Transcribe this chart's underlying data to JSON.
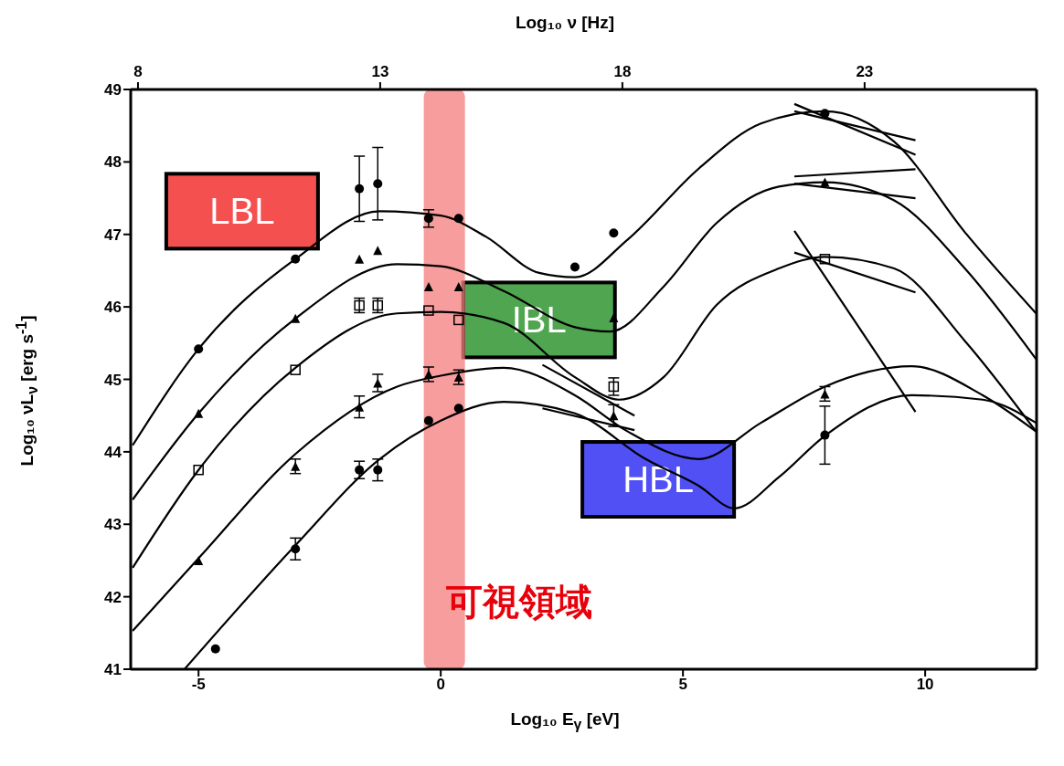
{
  "chart_data": {
    "type": "line",
    "xlabel": "Log₁₀ E$_{γ}$ [eV]",
    "ylabel": "Log₁₀ νL$_{ν}$ [erg s$^{-1}$]",
    "x2label": "Log₁₀ ν [Hz]",
    "xlim": [
      -6.4,
      12.3
    ],
    "xticks": [
      -5,
      0,
      5,
      10
    ],
    "x2lim": [
      7.85,
      26.55
    ],
    "x2ticks": [
      8,
      13,
      18,
      23
    ],
    "ylim": [
      41,
      49
    ],
    "yticks": [
      41,
      42,
      43,
      44,
      45,
      46,
      47,
      48,
      49
    ],
    "grid": false,
    "legend": false,
    "series": [
      {
        "color": "#000000",
        "marker": "none",
        "x": [
          -6.36,
          -5,
          -3,
          -1.26,
          0,
          0.93,
          2.03,
          2.77,
          3.86,
          5.33,
          6.61,
          7.93,
          9.36,
          10.82,
          12.29
        ],
        "values": [
          44.09,
          45.42,
          46.66,
          47.32,
          47.26,
          46.97,
          46.47,
          46.41,
          46.93,
          47.91,
          48.53,
          48.7,
          48.28,
          47.03,
          45.91
        ]
      },
      {
        "type": "line",
        "color": "#000000",
        "marker": "none",
        "x": [
          -6.36,
          -5,
          -3,
          -0.9,
          0,
          1.3,
          2.77,
          3.5,
          4.6,
          5.7,
          6.98,
          7.93,
          9.36,
          10.82,
          12.29
        ],
        "values": [
          43.34,
          44.53,
          45.84,
          46.59,
          46.56,
          46.22,
          45.72,
          45.66,
          46.28,
          47.16,
          47.66,
          47.72,
          47.47,
          46.53,
          45.28
        ]
      },
      {
        "type": "line",
        "color": "#000000",
        "marker": "none",
        "x": [
          -6.36,
          -5,
          -3,
          -0.9,
          0,
          1.3,
          2.77,
          3.68,
          4.6,
          5.7,
          6.98,
          7.93,
          9.36,
          10.82,
          12.29
        ],
        "values": [
          42.4,
          43.75,
          45.16,
          45.91,
          45.93,
          45.78,
          45.03,
          44.72,
          45.03,
          46.03,
          46.53,
          46.69,
          46.53,
          45.53,
          44.28
        ]
      },
      {
        "type": "line",
        "color": "#000000",
        "marker": "none",
        "x": [
          -6.36,
          -5,
          -3,
          -0.9,
          0,
          1.3,
          2.77,
          3.86,
          5.33,
          6.61,
          7.93,
          9.72,
          11.19,
          12.29
        ],
        "values": [
          41.53,
          42.53,
          43.97,
          44.9,
          45.05,
          45.16,
          44.78,
          44.28,
          43.9,
          44.4,
          44.9,
          45.18,
          44.78,
          44.28
        ]
      },
      {
        "type": "line",
        "color": "#000000",
        "marker": "none",
        "x": [
          -5.29,
          -3,
          -1.26,
          0,
          1.3,
          2.77,
          4.23,
          5.33,
          6.06,
          6.98,
          7.93,
          9.72,
          11.19,
          12.29
        ],
        "values": [
          41,
          42.71,
          43.9,
          44.43,
          44.69,
          44.53,
          43.9,
          43.53,
          43.22,
          43.65,
          44.22,
          44.78,
          44.72,
          44.4
        ]
      },
      {
        "type": "scatter",
        "color": "#000000",
        "marker": "circle",
        "x": [
          -5,
          -3,
          -1.68,
          -1.3,
          -0.25,
          0.37,
          2.77,
          3.57,
          7.93
        ],
        "values": [
          45.42,
          46.66,
          47.63,
          47.7,
          47.22,
          47.22,
          46.55,
          47.02,
          48.67
        ],
        "errors": [
          null,
          null,
          0.45,
          0.5,
          0.12,
          null,
          null,
          null,
          null
        ]
      },
      {
        "type": "scatter",
        "color": "#000000",
        "marker": "triangle",
        "x": [
          -5,
          -3,
          -1.68,
          -1.3,
          -0.25,
          0.37,
          3.57,
          7.93
        ],
        "values": [
          44.53,
          45.84,
          46.66,
          46.78,
          46.28,
          46.28,
          45.85,
          47.72
        ]
      },
      {
        "type": "scatter",
        "color": "#000000",
        "marker": "square",
        "x": [
          -5,
          -3,
          -1.68,
          -1.3,
          -0.25,
          0.37,
          3.57,
          7.93
        ],
        "values": [
          43.75,
          45.13,
          46.02,
          46.02,
          45.95,
          45.82,
          44.9,
          46.66
        ],
        "errors": [
          null,
          null,
          0.1,
          0.1,
          null,
          null,
          0.12,
          null
        ]
      },
      {
        "type": "scatter",
        "color": "#000000",
        "marker": "triangle",
        "x": [
          -5,
          -3,
          -1.68,
          -1.3,
          -0.25,
          0.37,
          3.57,
          7.93
        ],
        "values": [
          42.5,
          43.8,
          44.62,
          44.95,
          45.07,
          45.03,
          44.5,
          44.8
        ],
        "errors": [
          null,
          0.1,
          0.15,
          0.12,
          0.1,
          0.1,
          0.15,
          0.1
        ]
      },
      {
        "type": "scatter",
        "color": "#000000",
        "marker": "circle",
        "x": [
          -4.65,
          -3,
          -1.68,
          -1.3,
          -0.25,
          0.37,
          7.93
        ],
        "values": [
          41.28,
          42.66,
          43.75,
          43.75,
          44.43,
          44.6,
          44.23
        ],
        "errors": [
          null,
          0.15,
          0.12,
          0.15,
          null,
          null,
          0.4
        ]
      },
      {
        "type": "line",
        "color": "#000000",
        "marker": "none",
        "x": [
          7.3,
          9.8
        ],
        "values": [
          48.8,
          48.1
        ]
      },
      {
        "type": "line",
        "color": "#000000",
        "marker": "none",
        "x": [
          7.3,
          9.8
        ],
        "values": [
          48.7,
          48.3
        ]
      },
      {
        "type": "line",
        "color": "#000000",
        "marker": "none",
        "x": [
          7.3,
          9.8
        ],
        "values": [
          47.7,
          47.5
        ]
      },
      {
        "type": "line",
        "color": "#000000",
        "marker": "none",
        "x": [
          7.3,
          9.8
        ],
        "values": [
          47.8,
          47.9
        ]
      },
      {
        "type": "line",
        "color": "#000000",
        "marker": "none",
        "x": [
          7.3,
          9.8
        ],
        "values": [
          47.05,
          44.55
        ]
      },
      {
        "type": "line",
        "color": "#000000",
        "marker": "none",
        "x": [
          7.3,
          9.8
        ],
        "values": [
          46.75,
          46.2
        ]
      },
      {
        "type": "line",
        "color": "#000000",
        "marker": "none",
        "x": [
          2.1,
          4.0
        ],
        "values": [
          45.2,
          44.5
        ]
      },
      {
        "type": "line",
        "color": "#000000",
        "marker": "none",
        "x": [
          2.1,
          4.0
        ],
        "values": [
          44.6,
          44.3
        ]
      }
    ],
    "bands": [
      {
        "axis": "x",
        "from": -0.35,
        "to": 0.5,
        "label": "可視領域",
        "color": "#f47c7c"
      }
    ],
    "annotations": [
      "LBL",
      "IBL",
      "HBL"
    ]
  }
}
